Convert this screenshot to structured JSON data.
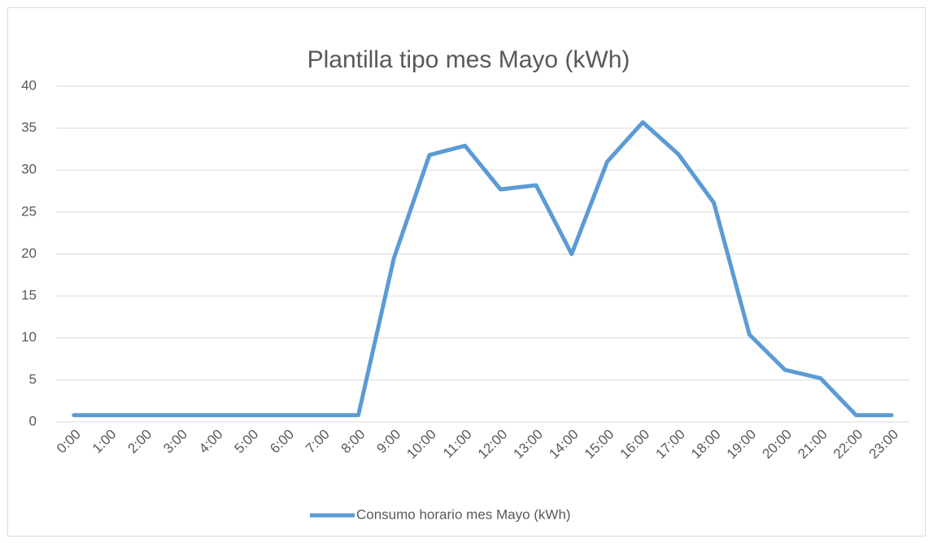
{
  "chart_data": {
    "type": "line",
    "title": "Plantilla tipo mes Mayo (kWh)",
    "categories": [
      "0:00",
      "1:00",
      "2:00",
      "3:00",
      "4:00",
      "5:00",
      "6:00",
      "7:00",
      "8:00",
      "9:00",
      "10:00",
      "11:00",
      "12:00",
      "13:00",
      "14:00",
      "15:00",
      "16:00",
      "17:00",
      "18:00",
      "19:00",
      "20:00",
      "21:00",
      "22:00",
      "23:00"
    ],
    "series": [
      {
        "name": "Consumo horario mes Mayo (kWh)",
        "color": "#5b9bd5",
        "values": [
          0.8,
          0.8,
          0.8,
          0.8,
          0.8,
          0.8,
          0.8,
          0.8,
          0.8,
          19.5,
          31.8,
          32.9,
          27.7,
          28.2,
          20,
          31,
          35.7,
          31.9,
          26.1,
          10.4,
          6.2,
          5.2,
          0.8,
          0.8
        ]
      }
    ],
    "ylim": [
      0,
      40
    ],
    "yticks": [
      0,
      5,
      10,
      15,
      20,
      25,
      30,
      35,
      40
    ],
    "grid": true,
    "legend": "bottom"
  }
}
